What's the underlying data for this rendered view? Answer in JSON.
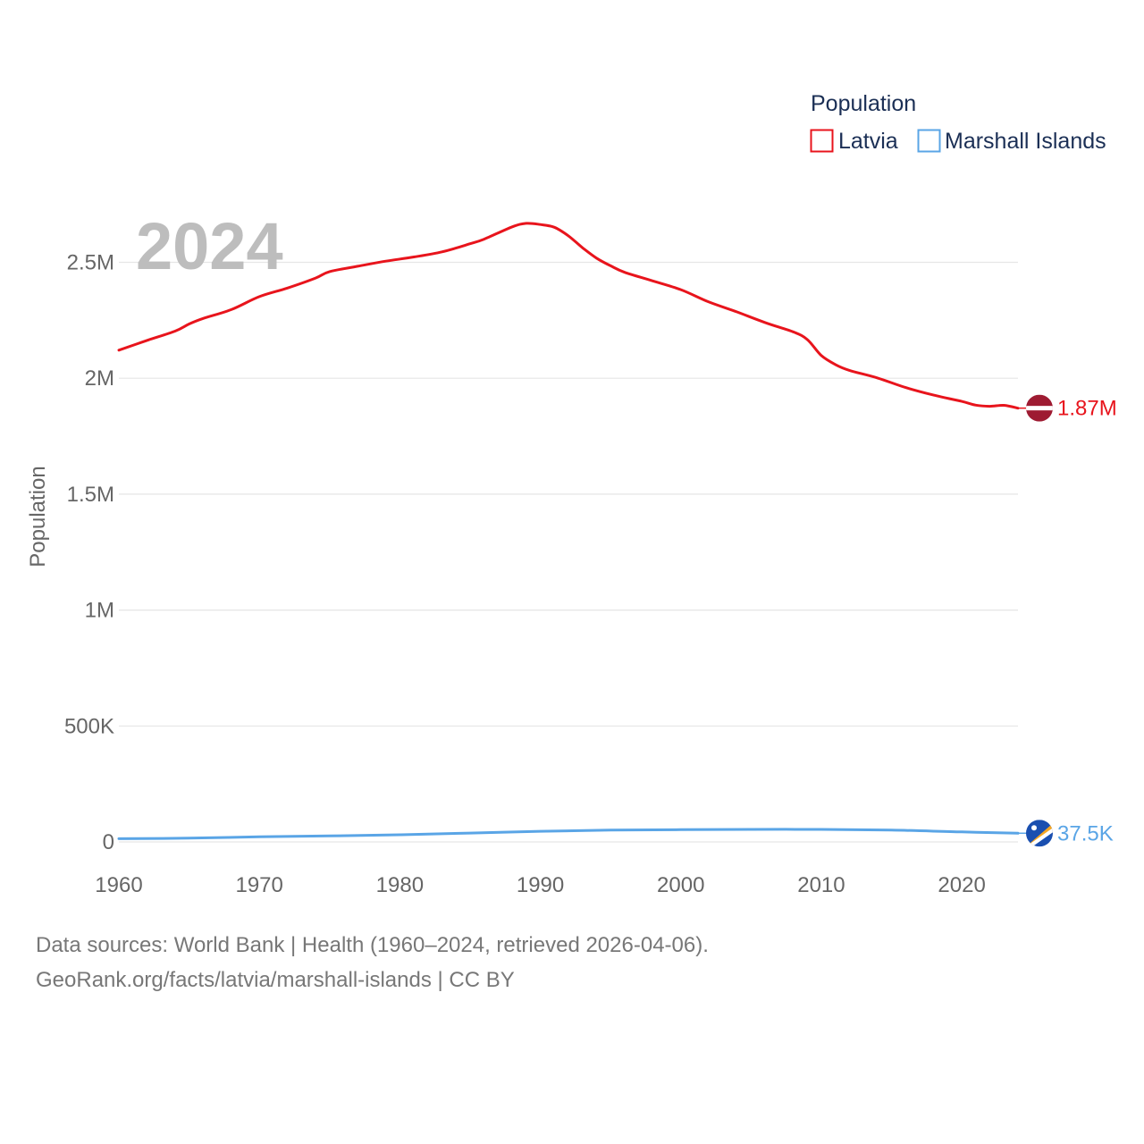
{
  "chart_data": {
    "type": "line",
    "year_label": "2024",
    "ylabel": "Population",
    "ylim": [
      0,
      2750000
    ],
    "xlim": [
      1960,
      2024
    ],
    "y_ticks": [
      {
        "value": 0,
        "label": "0"
      },
      {
        "value": 500000,
        "label": "500K"
      },
      {
        "value": 1000000,
        "label": "1M"
      },
      {
        "value": 1500000,
        "label": "1.5M"
      },
      {
        "value": 2000000,
        "label": "2M"
      },
      {
        "value": 2500000,
        "label": "2.5M"
      }
    ],
    "x_ticks": [
      {
        "value": 1960,
        "label": "1960"
      },
      {
        "value": 1970,
        "label": "1970"
      },
      {
        "value": 1980,
        "label": "1980"
      },
      {
        "value": 1990,
        "label": "1990"
      },
      {
        "value": 2000,
        "label": "2000"
      },
      {
        "value": 2010,
        "label": "2010"
      },
      {
        "value": 2020,
        "label": "2020"
      }
    ],
    "legend": {
      "title": "Population",
      "position": "top-right"
    },
    "series": [
      {
        "name": "Latvia",
        "color": "#e8141c",
        "end_label": "1.87M",
        "flag_icon": "latvia-flag-icon",
        "points": [
          [
            1960,
            2121000
          ],
          [
            1962,
            2163000
          ],
          [
            1964,
            2203000
          ],
          [
            1965,
            2234000
          ],
          [
            1966,
            2258000
          ],
          [
            1968,
            2296000
          ],
          [
            1970,
            2352000
          ],
          [
            1972,
            2389000
          ],
          [
            1974,
            2432000
          ],
          [
            1975,
            2460000
          ],
          [
            1977,
            2483000
          ],
          [
            1979,
            2505000
          ],
          [
            1981,
            2523000
          ],
          [
            1983,
            2545000
          ],
          [
            1985,
            2580000
          ],
          [
            1986,
            2600000
          ],
          [
            1988,
            2653000
          ],
          [
            1989,
            2668000
          ],
          [
            1990,
            2663000
          ],
          [
            1991,
            2651000
          ],
          [
            1992,
            2614000
          ],
          [
            1993,
            2563000
          ],
          [
            1994,
            2518000
          ],
          [
            1995,
            2485000
          ],
          [
            1996,
            2457000
          ],
          [
            1998,
            2420000
          ],
          [
            2000,
            2382000
          ],
          [
            2002,
            2329000
          ],
          [
            2004,
            2286000
          ],
          [
            2006,
            2240000
          ],
          [
            2008,
            2200000
          ],
          [
            2009,
            2167000
          ],
          [
            2010,
            2098000
          ],
          [
            2011,
            2059000
          ],
          [
            2012,
            2034000
          ],
          [
            2014,
            2001000
          ],
          [
            2016,
            1960000
          ],
          [
            2018,
            1927000
          ],
          [
            2020,
            1900000
          ],
          [
            2021,
            1884000
          ],
          [
            2022,
            1879000
          ],
          [
            2023,
            1883000
          ],
          [
            2024,
            1871000
          ]
        ]
      },
      {
        "name": "Marshall Islands",
        "color": "#5aa5e6",
        "end_label": "37.5K",
        "flag_icon": "marshall-islands-flag-icon",
        "points": [
          [
            1960,
            14000
          ],
          [
            1965,
            16000
          ],
          [
            1970,
            22000
          ],
          [
            1975,
            26000
          ],
          [
            1980,
            31000
          ],
          [
            1985,
            38000
          ],
          [
            1990,
            46000
          ],
          [
            1995,
            51000
          ],
          [
            2000,
            53000
          ],
          [
            2005,
            54000
          ],
          [
            2010,
            54000
          ],
          [
            2015,
            51000
          ],
          [
            2020,
            43000
          ],
          [
            2024,
            37500
          ]
        ]
      }
    ]
  },
  "footer": {
    "line1": "Data sources: World Bank | Health (1960–2024, retrieved 2026-04-06).",
    "line2": "GeoRank.org/facts/latvia/marshall-islands | CC BY"
  }
}
